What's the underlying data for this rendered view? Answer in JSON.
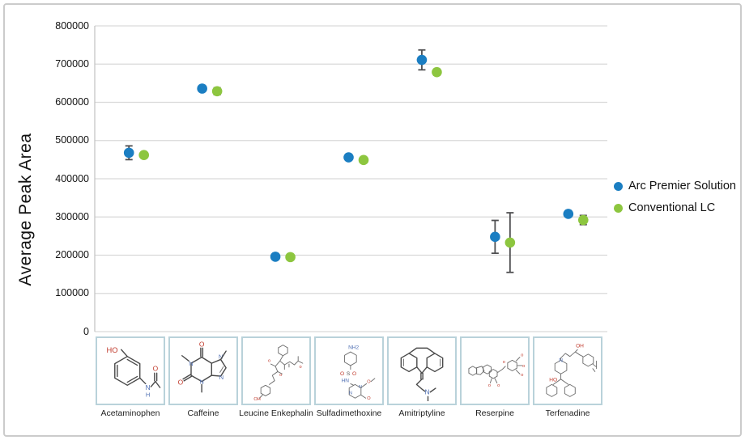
{
  "chart_data": {
    "type": "scatter",
    "title": "",
    "ylabel": "Average Peak Area",
    "xlabel": "",
    "ylim": [
      0,
      800000
    ],
    "ytick_interval": 100000,
    "grid": true,
    "legend_position": "right",
    "categories": [
      "Acetaminophen",
      "Caffeine",
      "Leucine Enkephalin",
      "Sulfadimethoxine",
      "Amitriptyline",
      "Reserpine",
      "Terfenadine"
    ],
    "series": [
      {
        "name": "Arc Premier Solution",
        "color": "#1b7ec2",
        "marker": "circle",
        "values": [
          468000,
          636000,
          196000,
          456000,
          711000,
          248000,
          308000
        ],
        "error": [
          18000,
          0,
          6000,
          6000,
          26000,
          43000,
          0
        ]
      },
      {
        "name": "Conventional LC",
        "color": "#8dc63f",
        "marker": "circle",
        "values": [
          462000,
          629000,
          195000,
          449000,
          679000,
          233000,
          292000
        ],
        "error": [
          0,
          9000,
          5000,
          6000,
          8000,
          78000,
          12000
        ]
      }
    ],
    "error_bar_color": "#4f4f51"
  },
  "x_axis_thumbnails": {
    "items": [
      {
        "label": "Acetaminophen",
        "icon": "acetaminophen-structure-icon"
      },
      {
        "label": "Caffeine",
        "icon": "caffeine-structure-icon"
      },
      {
        "label": "Leucine Enkephalin",
        "icon": "leucine-enkephalin-structure-icon"
      },
      {
        "label": "Sulfadimethoxine",
        "icon": "sulfadimethoxine-structure-icon"
      },
      {
        "label": "Amitriptyline",
        "icon": "amitriptyline-structure-icon"
      },
      {
        "label": "Reserpine",
        "icon": "reserpine-structure-icon"
      },
      {
        "label": "Terfenadine",
        "icon": "terfenadine-structure-icon"
      }
    ]
  },
  "colors": {
    "accent_blue": "#1b7ec2",
    "accent_green": "#8dc63f",
    "grid": "#d9d9d9",
    "axis": "#c2c2c2",
    "error_bar": "#4f4f51",
    "frame_border": "#cbcbcb",
    "structure_box_border": "#b9d2da"
  }
}
